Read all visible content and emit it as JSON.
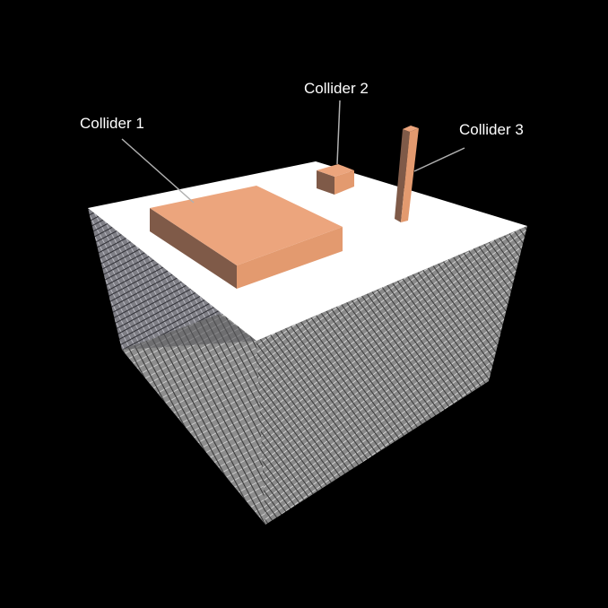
{
  "labels": {
    "collider_1": "Collider 1",
    "collider_2": "Collider 2",
    "collider_3": "Collider 3"
  },
  "colors": {
    "background": "#000000",
    "ground_top": "#ffffff",
    "collider_top": "#eca57d",
    "collider_front": "#e39a6f",
    "collider_side": "#7f5a48",
    "grid_surface": "#8e8e8e",
    "grid_line_dark": "#3a3a3a",
    "grid_line_light": "#c9c9c9",
    "leader_line": "#b0b0b0",
    "label_text": "#ffffff"
  }
}
